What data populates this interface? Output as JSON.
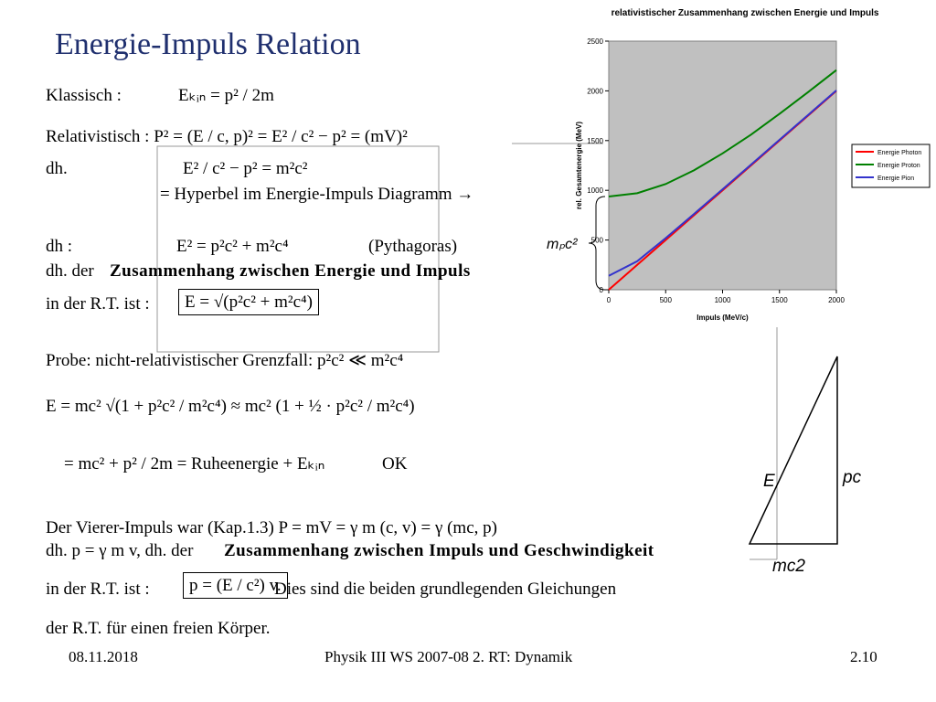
{
  "slide": {
    "title": "Energie-Impuls Relation",
    "lines": [
      "Klassisch :",
      "Eₖᵢₙ = p² / 2m",
      "Relativistisch :  P² = (E / c, p)² = E² / c² − p² = (mV)²",
      "dh.",
      "E² / c² − p² = m²c²",
      "= Hyperbel im Energie-Impuls Diagramm →",
      "dh :",
      "E² = p²c² + m²c⁴",
      "(Pythagoras)",
      "dh. der",
      "Zusammenhang zwischen Energie und Impuls",
      "in der R.T. ist :",
      "E = √(p²c² + m²c⁴)",
      "Probe: nicht-relativistischer Grenzfall:  p²c² ≪ m²c⁴",
      "E = mc² √(1 + p²c² / m²c⁴)  ≈ mc² (1 + ½ · p²c² / m²c⁴)",
      "= mc² + p² / 2m   = Ruheenergie + Eₖᵢₙ",
      "OK",
      "Der Vierer-Impuls war (Kap.1.3) P = mV = γ m (c, v) = γ (mc, p)",
      "dh. p = γ m v, dh. der",
      "Zusammenhang zwischen Impuls und Geschwindigkeit",
      "in der R.T. ist :",
      "p = (E / c²) v.",
      "Dies sind die beiden grundlegenden Gleichungen",
      "der R.T. für einen freien Körper."
    ],
    "footer": {
      "date": "08.11.2018",
      "course": "Physik III WS 2007-08 2. RT: Dynamik",
      "page": "2.10"
    }
  },
  "diagram": {
    "labels": [
      "E",
      "pc",
      "mc2"
    ]
  },
  "chart_data": {
    "type": "line",
    "title": "relativistischer Zusammenhang zwischen Energie und Impuls",
    "xlabel": "Impuls (MeV/c)",
    "ylabel": "rel. Gesamtenergie (MeV)",
    "annotation": "mₚc²",
    "x": [
      0,
      250,
      500,
      750,
      1000,
      1250,
      1500,
      1750,
      2000
    ],
    "series": [
      {
        "name": "Energie Photon",
        "color": "#ff0000",
        "values": [
          0,
          250,
          500,
          750,
          1000,
          1250,
          1500,
          1750,
          2000
        ]
      },
      {
        "name": "Energie Proton",
        "color": "#008000",
        "values": [
          938,
          971,
          1063,
          1202,
          1371,
          1560,
          1769,
          1986,
          2209
        ]
      },
      {
        "name": "Energie Pion",
        "color": "#3333cc",
        "values": [
          140,
          287,
          519,
          763,
          1010,
          1258,
          1507,
          1756,
          2005
        ]
      }
    ],
    "xlim": [
      0,
      2000
    ],
    "xticks": [
      0,
      500,
      1000,
      1500,
      2000
    ],
    "ylim": [
      0,
      2500
    ],
    "yticks": [
      0,
      500,
      1000,
      1500,
      2000,
      2500
    ],
    "legend": "right",
    "plot_background": "#c0c0c0"
  }
}
